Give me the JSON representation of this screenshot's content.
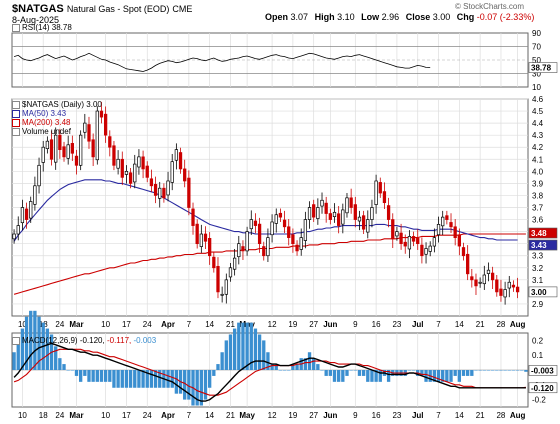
{
  "header": {
    "symbol": "$NATGAS",
    "description": "Natural Gas - Spot (EOD)",
    "exchange": "CME",
    "date": "8-Aug-2025",
    "open_label": "Open",
    "open": "3.07",
    "high_label": "High",
    "high": "3.10",
    "low_label": "Low",
    "low": "2.96",
    "close_label": "Close",
    "close": "3.00",
    "chg_label": "Chg",
    "chg": "-0.07 (-2.33%)",
    "watermark": "© StockCharts.com"
  },
  "colors": {
    "up": "#000000",
    "down": "#cc0000",
    "ma50": "#2a2aa0",
    "ma200": "#cc0000",
    "macd": "#000000",
    "signal": "#cc0000",
    "histogram": "#3b8fd0",
    "rsi": "#000000",
    "grid": "#dddddd"
  },
  "chart_data": [
    {
      "type": "line",
      "panel": "rsi",
      "legend": "RSI(14) 38.78",
      "last_value": 38.78,
      "last_label": "38.78",
      "ylim": [
        10,
        90
      ],
      "ticks": [
        "90",
        "70",
        "50",
        "30",
        "10"
      ],
      "tick_values": [
        90,
        70,
        50,
        30,
        10
      ],
      "values": [
        55,
        57,
        52,
        50,
        49,
        51,
        53,
        56,
        58,
        55,
        52,
        54,
        56,
        53,
        50,
        52,
        55,
        57,
        60,
        57,
        54,
        51,
        50,
        47,
        45,
        43,
        40,
        37,
        36,
        35,
        34,
        33,
        35,
        38,
        42,
        45,
        47,
        49,
        48,
        46,
        47,
        49,
        51,
        53,
        52,
        50,
        49,
        51,
        53,
        50,
        48,
        49,
        51,
        52,
        53,
        55,
        56,
        54,
        52,
        51,
        53,
        55,
        57,
        58,
        56,
        55,
        53,
        52,
        54,
        56,
        58,
        60,
        59,
        57,
        55,
        53,
        52,
        51,
        53,
        55,
        56,
        55,
        57,
        58,
        56,
        54,
        52,
        50,
        48,
        46,
        44,
        42,
        40,
        39,
        38,
        38,
        40,
        42,
        41,
        39,
        38.78
      ]
    },
    {
      "type": "candlestick",
      "panel": "price",
      "title": "$NATGAS (Daily) 3.00",
      "series": [
        {
          "name": "MA(50) 3.43"
        },
        {
          "name": "MA(200) 3.48"
        },
        {
          "name": "Volume undef"
        }
      ],
      "ylim": [
        2.8,
        4.6
      ],
      "y_ticks": [
        "4.6",
        "4.5",
        "4.4",
        "4.3",
        "4.2",
        "4.1",
        "4.0",
        "3.9",
        "3.8",
        "3.7",
        "3.6",
        "3.5",
        "3.4",
        "3.3",
        "3.2",
        "3.1",
        "2.9"
      ],
      "y_tick_values": [
        4.6,
        4.5,
        4.4,
        4.3,
        4.2,
        4.1,
        4.0,
        3.9,
        3.8,
        3.7,
        3.6,
        3.5,
        3.4,
        3.3,
        3.2,
        3.1,
        2.9
      ],
      "last_label": "3.00",
      "ma50_label": "3.43",
      "ma200_label": "3.48",
      "x_labels": [
        "10",
        "18",
        "24",
        "Mar",
        "10",
        "17",
        "24",
        "Apr",
        "7",
        "14",
        "21",
        "May",
        "12",
        "19",
        "27",
        "Jun",
        "9",
        "16",
        "23",
        "Jul",
        "7",
        "14",
        "21",
        "28",
        "Aug"
      ],
      "x_label_index": [
        2,
        7,
        11,
        15,
        22,
        27,
        32,
        37,
        42,
        47,
        52,
        56,
        62,
        67,
        72,
        76,
        82,
        87,
        92,
        97,
        102,
        107,
        112,
        117,
        121
      ],
      "x_label_bold": [
        "Mar",
        "Apr",
        "May",
        "Jun",
        "Jul",
        "Aug"
      ],
      "n_bars": 124,
      "close": [
        3.48,
        3.55,
        3.7,
        3.6,
        3.75,
        3.88,
        4.05,
        4.2,
        4.25,
        4.1,
        4.3,
        4.18,
        4.12,
        4.22,
        4.15,
        4.05,
        4.3,
        4.4,
        4.25,
        4.12,
        4.5,
        4.45,
        4.3,
        4.2,
        4.05,
        4.1,
        3.95,
        4.0,
        3.9,
        4.06,
        4.12,
        4.02,
        3.95,
        3.88,
        3.8,
        3.86,
        3.78,
        3.92,
        4.08,
        4.18,
        4.02,
        3.92,
        3.7,
        3.55,
        3.4,
        3.48,
        3.42,
        3.3,
        3.2,
        3.0,
        2.98,
        3.1,
        3.2,
        3.28,
        3.4,
        3.34,
        3.5,
        3.6,
        3.55,
        3.4,
        3.3,
        3.45,
        3.58,
        3.64,
        3.62,
        3.54,
        3.45,
        3.4,
        3.34,
        3.45,
        3.6,
        3.7,
        3.62,
        3.7,
        3.76,
        3.65,
        3.6,
        3.66,
        3.55,
        3.68,
        3.78,
        3.7,
        3.6,
        3.62,
        3.52,
        3.6,
        3.7,
        3.92,
        3.82,
        3.74,
        3.6,
        3.44,
        3.5,
        3.4,
        3.38,
        3.46,
        3.42,
        3.4,
        3.3,
        3.36,
        3.38,
        3.45,
        3.56,
        3.62,
        3.6,
        3.54,
        3.45,
        3.38,
        3.3,
        3.15,
        3.1,
        3.05,
        3.08,
        3.14,
        3.18,
        3.1,
        3.0,
        2.97,
        3.02,
        3.08,
        3.04,
        3.0
      ],
      "ma50": [
        3.42,
        3.47,
        3.51,
        3.56,
        3.6,
        3.64,
        3.68,
        3.72,
        3.76,
        3.79,
        3.82,
        3.85,
        3.87,
        3.89,
        3.9,
        3.91,
        3.92,
        3.93,
        3.93,
        3.93,
        3.93,
        3.93,
        3.92,
        3.92,
        3.91,
        3.9,
        3.9,
        3.89,
        3.88,
        3.87,
        3.86,
        3.85,
        3.84,
        3.83,
        3.82,
        3.8,
        3.78,
        3.76,
        3.74,
        3.72,
        3.7,
        3.68,
        3.66,
        3.64,
        3.62,
        3.6,
        3.58,
        3.56,
        3.55,
        3.54,
        3.53,
        3.52,
        3.51,
        3.5,
        3.5,
        3.49,
        3.49,
        3.49,
        3.48,
        3.48,
        3.48,
        3.48,
        3.48,
        3.48,
        3.48,
        3.48,
        3.48,
        3.48,
        3.49,
        3.49,
        3.5,
        3.5,
        3.51,
        3.52,
        3.52,
        3.53,
        3.53,
        3.54,
        3.54,
        3.55,
        3.55,
        3.55,
        3.55,
        3.55,
        3.55,
        3.55,
        3.55,
        3.56,
        3.56,
        3.56,
        3.55,
        3.55,
        3.55,
        3.54,
        3.54,
        3.53,
        3.52,
        3.52,
        3.51,
        3.51,
        3.51,
        3.51,
        3.52,
        3.52,
        3.52,
        3.52,
        3.51,
        3.5,
        3.49,
        3.48,
        3.47,
        3.46,
        3.45,
        3.45,
        3.44,
        3.44,
        3.43,
        3.43,
        3.43,
        3.43,
        3.43,
        3.43
      ],
      "ma200": [
        2.98,
        2.99,
        3.0,
        3.01,
        3.02,
        3.03,
        3.04,
        3.05,
        3.06,
        3.07,
        3.08,
        3.09,
        3.1,
        3.11,
        3.12,
        3.13,
        3.14,
        3.15,
        3.15,
        3.16,
        3.17,
        3.18,
        3.19,
        3.2,
        3.2,
        3.21,
        3.22,
        3.23,
        3.24,
        3.24,
        3.25,
        3.26,
        3.26,
        3.27,
        3.27,
        3.28,
        3.28,
        3.29,
        3.29,
        3.3,
        3.3,
        3.31,
        3.31,
        3.31,
        3.32,
        3.32,
        3.32,
        3.33,
        3.33,
        3.33,
        3.33,
        3.34,
        3.34,
        3.34,
        3.34,
        3.35,
        3.35,
        3.35,
        3.35,
        3.36,
        3.36,
        3.36,
        3.36,
        3.37,
        3.37,
        3.37,
        3.37,
        3.38,
        3.38,
        3.38,
        3.38,
        3.39,
        3.39,
        3.39,
        3.4,
        3.4,
        3.4,
        3.4,
        3.41,
        3.41,
        3.41,
        3.42,
        3.42,
        3.42,
        3.42,
        3.43,
        3.43,
        3.43,
        3.43,
        3.44,
        3.44,
        3.44,
        3.44,
        3.45,
        3.45,
        3.45,
        3.45,
        3.45,
        3.46,
        3.46,
        3.46,
        3.46,
        3.47,
        3.47,
        3.47,
        3.47,
        3.47,
        3.47,
        3.48,
        3.48,
        3.48,
        3.48,
        3.48,
        3.48,
        3.48,
        3.48,
        3.48,
        3.48,
        3.48,
        3.48,
        3.48,
        3.48,
        3.48,
        3.48
      ]
    },
    {
      "type": "line",
      "panel": "macd",
      "legend": "MACD(12,26,9) -0.120, -0.117, -0.003",
      "legend_parts": {
        "prefix": "MACD(12,26,9)",
        "macd": "-0.120,",
        "signal": "-0.117,",
        "hist": "-0.003"
      },
      "ylim": [
        -0.25,
        0.25
      ],
      "ticks": [
        "0.2",
        "0.1",
        "0.0",
        "-0.1",
        "-0.2"
      ],
      "tick_values": [
        0.2,
        0.1,
        0.0,
        -0.1,
        -0.2
      ],
      "last_macd_label": "-0.120",
      "last_hist_label": "-0.003",
      "macd": [
        -0.05,
        -0.02,
        0.02,
        0.06,
        0.1,
        0.13,
        0.15,
        0.16,
        0.17,
        0.18,
        0.17,
        0.16,
        0.15,
        0.14,
        0.14,
        0.13,
        0.12,
        0.12,
        0.11,
        0.1,
        0.1,
        0.09,
        0.08,
        0.07,
        0.06,
        0.05,
        0.04,
        0.03,
        0.02,
        0.01,
        0.0,
        -0.01,
        -0.02,
        -0.03,
        -0.04,
        -0.05,
        -0.06,
        -0.07,
        -0.08,
        -0.1,
        -0.12,
        -0.14,
        -0.16,
        -0.18,
        -0.2,
        -0.21,
        -0.21,
        -0.2,
        -0.18,
        -0.16,
        -0.13,
        -0.1,
        -0.07,
        -0.04,
        -0.01,
        0.01,
        0.03,
        0.05,
        0.06,
        0.06,
        0.06,
        0.05,
        0.04,
        0.04,
        0.03,
        0.03,
        0.03,
        0.04,
        0.05,
        0.06,
        0.07,
        0.08,
        0.08,
        0.07,
        0.06,
        0.05,
        0.04,
        0.03,
        0.02,
        0.02,
        0.03,
        0.04,
        0.04,
        0.03,
        0.02,
        0.01,
        0.0,
        -0.01,
        -0.02,
        -0.02,
        -0.03,
        -0.03,
        -0.03,
        -0.03,
        -0.03,
        -0.02,
        -0.02,
        -0.03,
        -0.04,
        -0.05,
        -0.06,
        -0.07,
        -0.08,
        -0.09,
        -0.1,
        -0.11,
        -0.11,
        -0.12,
        -0.12,
        -0.12,
        -0.12,
        -0.12,
        -0.12,
        -0.12,
        -0.12,
        -0.12,
        -0.12,
        -0.12,
        -0.12,
        -0.12,
        -0.12,
        -0.12,
        -0.12,
        -0.12
      ],
      "signal": [
        -0.08,
        -0.07,
        -0.05,
        -0.03,
        0.0,
        0.03,
        0.06,
        0.08,
        0.1,
        0.12,
        0.13,
        0.14,
        0.14,
        0.14,
        0.14,
        0.14,
        0.14,
        0.13,
        0.13,
        0.12,
        0.12,
        0.11,
        0.1,
        0.09,
        0.09,
        0.08,
        0.07,
        0.06,
        0.05,
        0.04,
        0.03,
        0.02,
        0.01,
        0.0,
        -0.01,
        -0.02,
        -0.03,
        -0.04,
        -0.05,
        -0.06,
        -0.08,
        -0.09,
        -0.11,
        -0.12,
        -0.14,
        -0.15,
        -0.16,
        -0.17,
        -0.17,
        -0.17,
        -0.16,
        -0.15,
        -0.13,
        -0.11,
        -0.09,
        -0.07,
        -0.05,
        -0.03,
        -0.01,
        0.0,
        0.01,
        0.02,
        0.03,
        0.03,
        0.03,
        0.03,
        0.03,
        0.03,
        0.04,
        0.04,
        0.05,
        0.05,
        0.06,
        0.06,
        0.06,
        0.06,
        0.05,
        0.05,
        0.04,
        0.04,
        0.04,
        0.04,
        0.04,
        0.04,
        0.03,
        0.03,
        0.02,
        0.01,
        0.0,
        -0.01,
        -0.01,
        -0.02,
        -0.02,
        -0.02,
        -0.02,
        -0.02,
        -0.02,
        -0.02,
        -0.03,
        -0.03,
        -0.04,
        -0.05,
        -0.06,
        -0.07,
        -0.08,
        -0.09,
        -0.1,
        -0.1,
        -0.11,
        -0.11,
        -0.11,
        -0.12,
        -0.12,
        -0.12,
        -0.12,
        -0.12,
        -0.12,
        -0.12,
        -0.12,
        -0.12,
        -0.12,
        -0.12,
        -0.12,
        -0.117
      ]
    }
  ]
}
